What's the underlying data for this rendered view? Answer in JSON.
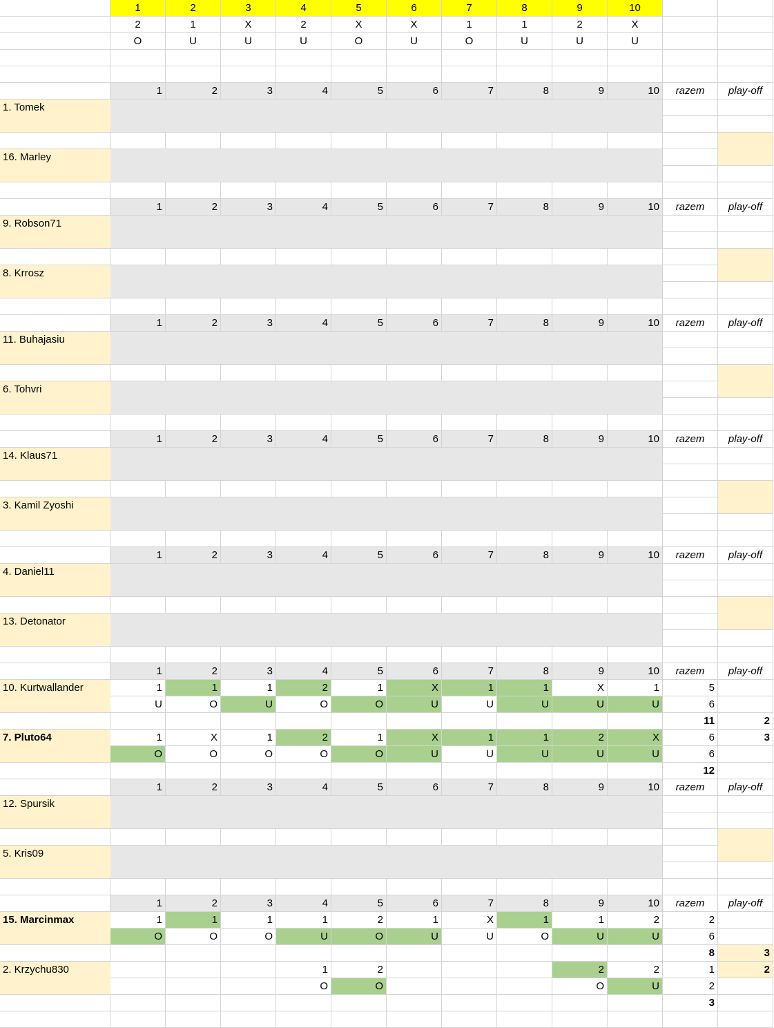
{
  "key": {
    "numbers": [
      "1",
      "2",
      "3",
      "4",
      "5",
      "6",
      "7",
      "8",
      "9",
      "10"
    ],
    "results": [
      "2",
      "1",
      "X",
      "2",
      "X",
      "X",
      "1",
      "1",
      "2",
      "X"
    ],
    "overunder": [
      "O",
      "U",
      "U",
      "U",
      "O",
      "U",
      "O",
      "U",
      "U",
      "U"
    ]
  },
  "header": {
    "numbers": [
      "1",
      "2",
      "3",
      "4",
      "5",
      "6",
      "7",
      "8",
      "9",
      "10"
    ],
    "total_label": "razem",
    "playoff_label": "play-off"
  },
  "matches": [
    {
      "players": [
        {
          "name": "1. Tomek"
        },
        {
          "name": "16. Marley"
        }
      ]
    },
    {
      "players": [
        {
          "name": "9. Robson71"
        },
        {
          "name": "8. Krrosz"
        }
      ]
    },
    {
      "players": [
        {
          "name": "11. Buhajasiu"
        },
        {
          "name": "6. Tohvri"
        }
      ]
    },
    {
      "players": [
        {
          "name": "14. Klaus71"
        },
        {
          "name": "3. Kamil Zyoshi"
        }
      ]
    },
    {
      "players": [
        {
          "name": "4. Daniel11"
        },
        {
          "name": "13. Detonator"
        }
      ]
    },
    {
      "players": [
        {
          "name": "10. Kurtwallander",
          "bold": false,
          "picks": [
            "1",
            "1",
            "1",
            "2",
            "1",
            "X",
            "1",
            "1",
            "X",
            "1"
          ],
          "picks_correct": [
            false,
            true,
            false,
            true,
            false,
            true,
            true,
            true,
            false,
            false
          ],
          "ou": [
            "U",
            "O",
            "U",
            "O",
            "O",
            "U",
            "U",
            "U",
            "U",
            "U"
          ],
          "ou_correct": [
            false,
            false,
            true,
            false,
            true,
            true,
            false,
            true,
            true,
            true
          ],
          "score_1x2": "5",
          "score_ou": "6",
          "total": "11",
          "playoff": "2"
        },
        {
          "name": "7. Pluto64",
          "bold": true,
          "picks": [
            "1",
            "X",
            "1",
            "2",
            "1",
            "X",
            "1",
            "1",
            "2",
            "X"
          ],
          "picks_correct": [
            false,
            false,
            false,
            true,
            false,
            true,
            true,
            true,
            true,
            true
          ],
          "ou": [
            "O",
            "O",
            "O",
            "O",
            "O",
            "U",
            "U",
            "U",
            "U",
            "U"
          ],
          "ou_correct": [
            true,
            false,
            false,
            false,
            true,
            true,
            false,
            true,
            true,
            true
          ],
          "score_1x2": "6",
          "score_ou": "6",
          "total": "12",
          "playoff": "3"
        }
      ]
    },
    {
      "players": [
        {
          "name": "12. Spursik"
        },
        {
          "name": "5. Kris09"
        }
      ]
    },
    {
      "players": [
        {
          "name": "15. Marcinmax",
          "bold": true,
          "picks": [
            "1",
            "1",
            "1",
            "1",
            "2",
            "1",
            "X",
            "1",
            "1",
            "2"
          ],
          "picks_correct": [
            false,
            true,
            false,
            false,
            false,
            false,
            false,
            true,
            false,
            false
          ],
          "ou": [
            "O",
            "O",
            "O",
            "U",
            "O",
            "U",
            "U",
            "O",
            "U",
            "U"
          ],
          "ou_correct": [
            true,
            false,
            false,
            true,
            true,
            true,
            false,
            false,
            true,
            true
          ],
          "score_1x2": "2",
          "score_ou": "6",
          "total": "8",
          "playoff": "3"
        },
        {
          "name": "2. Krzychu830",
          "bold": false,
          "picks": [
            "",
            "",
            "",
            "1",
            "2",
            "",
            "",
            "",
            "2",
            "2"
          ],
          "picks_correct": [
            false,
            false,
            false,
            false,
            false,
            false,
            false,
            false,
            true,
            false
          ],
          "ou": [
            "",
            "",
            "",
            "O",
            "O",
            "",
            "",
            "",
            "O",
            "U"
          ],
          "ou_correct": [
            false,
            false,
            false,
            false,
            true,
            false,
            false,
            false,
            false,
            true
          ],
          "score_1x2": "1",
          "score_ou": "2",
          "total": "3",
          "playoff": "2"
        }
      ]
    }
  ]
}
